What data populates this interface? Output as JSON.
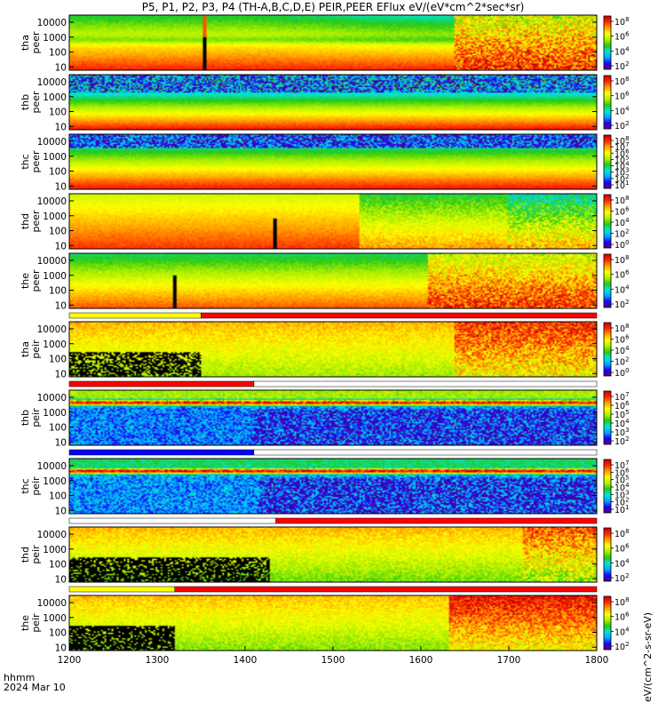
{
  "title": "P5, P1, P2, P3, P4 (TH-A,B,C,D,E) PEIR,PEER EFlux eV/(eV*cm^2*sec*sr)",
  "footer": {
    "time_label": "hhmm",
    "date_label": "2024 Mar 10"
  },
  "colorbar_side_label": "eV/(cm^2-s-sr-eV)",
  "colorscale": [
    "#5a0077",
    "#1d00ff",
    "#00a8ff",
    "#00e7d6",
    "#25c818",
    "#aef000",
    "#ffff00",
    "#ff9f00",
    "#ff2800",
    "#c80000"
  ],
  "chart_data": {
    "type": "heatmap",
    "x_ticks": [
      "1200",
      "1300",
      "1400",
      "1500",
      "1600",
      "1700",
      "1800"
    ],
    "xlim": [
      "1200",
      "1800"
    ],
    "y_scale": "log",
    "grid": false,
    "panels": [
      {
        "probe": "tha",
        "species": "peer",
        "ylim": [
          6,
          30000
        ],
        "y_ticks": [
          "10",
          "100",
          "1000",
          "10000"
        ],
        "cbar_ticks": [
          "10^2",
          "10^4",
          "10^6",
          "10^8"
        ],
        "status_bar": "none"
      },
      {
        "probe": "thb",
        "species": "peer",
        "ylim": [
          6,
          30000
        ],
        "y_ticks": [
          "10",
          "100",
          "1000",
          "10000"
        ],
        "cbar_ticks": [
          "10^2",
          "10^4",
          "10^6",
          "10^8"
        ],
        "status_bar": "none"
      },
      {
        "probe": "thc",
        "species": "peer",
        "ylim": [
          6,
          30000
        ],
        "y_ticks": [
          "10",
          "100",
          "1000",
          "10000"
        ],
        "cbar_ticks": [
          "10^1",
          "10^2",
          "10^3",
          "10^4",
          "10^5",
          "10^6",
          "10^7",
          "10^8"
        ],
        "status_bar": "none"
      },
      {
        "probe": "thd",
        "species": "peer",
        "ylim": [
          6,
          30000
        ],
        "y_ticks": [
          "10",
          "100",
          "1000",
          "10000"
        ],
        "cbar_ticks": [
          "10^0",
          "10^2",
          "10^4",
          "10^6",
          "10^8"
        ],
        "status_bar": "none"
      },
      {
        "probe": "the",
        "species": "peer",
        "ylim": [
          6,
          30000
        ],
        "y_ticks": [
          "10",
          "100",
          "1000",
          "10000"
        ],
        "cbar_ticks": [
          "10^2",
          "10^4",
          "10^6",
          "10^8"
        ],
        "status_bar": "none"
      },
      {
        "probe": "tha",
        "species": "peir",
        "ylim": [
          6,
          30000
        ],
        "y_ticks": [
          "10",
          "100",
          "1000",
          "10000"
        ],
        "cbar_ticks": [
          "10^0",
          "10^2",
          "10^4",
          "10^6",
          "10^8"
        ],
        "status_bar": "yellow until 1350, red after"
      },
      {
        "probe": "thb",
        "species": "peir",
        "ylim": [
          6,
          30000
        ],
        "y_ticks": [
          "10",
          "100",
          "1000",
          "10000"
        ],
        "cbar_ticks": [
          "10^2",
          "10^3",
          "10^4",
          "10^5",
          "10^6",
          "10^7"
        ],
        "status_bar": "red until 1410, white after"
      },
      {
        "probe": "thc",
        "species": "peir",
        "ylim": [
          6,
          30000
        ],
        "y_ticks": [
          "10",
          "100",
          "1000",
          "10000"
        ],
        "cbar_ticks": [
          "10^1",
          "10^2",
          "10^3",
          "10^4",
          "10^5",
          "10^6",
          "10^7"
        ],
        "status_bar": "blue until 1410, white after"
      },
      {
        "probe": "thd",
        "species": "peir",
        "ylim": [
          6,
          30000
        ],
        "y_ticks": [
          "10",
          "100",
          "1000",
          "10000"
        ],
        "cbar_ticks": [
          "10^2",
          "10^4",
          "10^6",
          "10^8"
        ],
        "status_bar": "white until 1435, red after"
      },
      {
        "probe": "the",
        "species": "peir",
        "ylim": [
          6,
          30000
        ],
        "y_ticks": [
          "10",
          "100",
          "1000",
          "10000"
        ],
        "cbar_ticks": [
          "10^2",
          "10^4",
          "10^6",
          "10^8"
        ],
        "status_bar": "yellow until 1320, red after"
      }
    ]
  }
}
